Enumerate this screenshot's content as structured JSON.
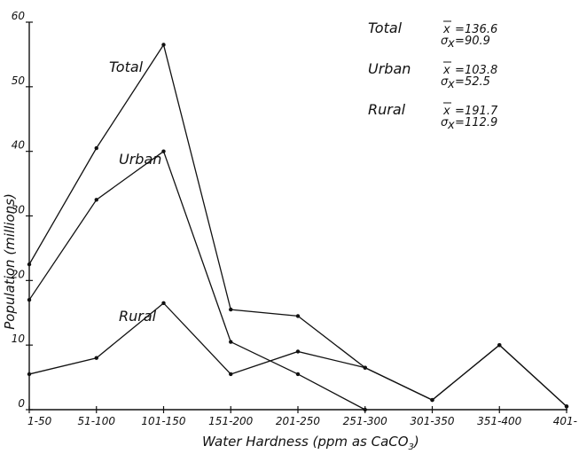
{
  "chart_data": {
    "type": "line",
    "xlabel": "Water Hardness (ppm as CaCO",
    "xlabel_sub": "3",
    "xlabel_close": ")",
    "ylabel": "Population (millions)",
    "categories": [
      "1-50",
      "51-100",
      "101-150",
      "151-200",
      "201-250",
      "251-300",
      "301-350",
      "351-400",
      "401-"
    ],
    "ylim": [
      0,
      60
    ],
    "yticks": [
      "0",
      "10",
      "20",
      "30",
      "40",
      "50",
      "60"
    ],
    "grid": false,
    "series": [
      {
        "name": "Total",
        "values": [
          22.5,
          40.5,
          56.5,
          15.5,
          14.5,
          6.5,
          1.5,
          10,
          0.5
        ]
      },
      {
        "name": "Urban",
        "values": [
          17,
          32.5,
          40,
          10.5,
          5.5,
          0,
          null,
          null,
          null
        ]
      },
      {
        "name": "Rural",
        "values": [
          5.5,
          8,
          16.5,
          5.5,
          9,
          6.5,
          1.5,
          10,
          0.5
        ]
      }
    ],
    "stats": [
      {
        "name": "Total",
        "mean": "136.6",
        "sigma": "90.9"
      },
      {
        "name": "Urban",
        "mean": "103.8",
        "sigma": "52.5"
      },
      {
        "name": "Rural",
        "mean": "191.7",
        "sigma": "112.9"
      }
    ]
  }
}
